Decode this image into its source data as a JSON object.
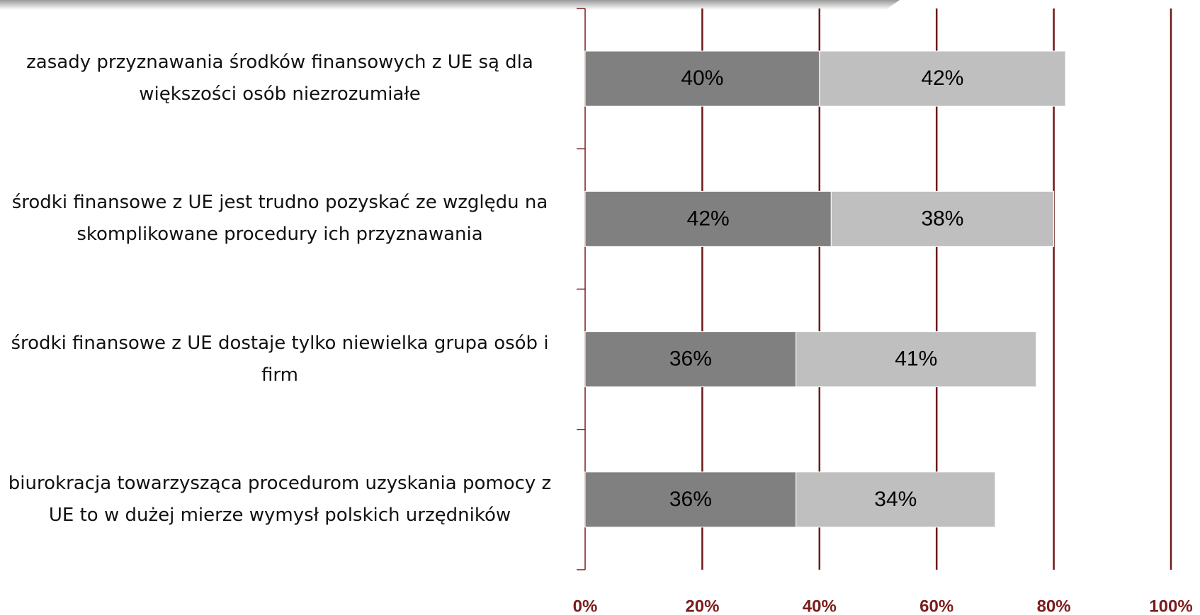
{
  "chart_data": {
    "type": "stacked-barh",
    "categories": [
      "zasady przyznawania środków finansowych z UE są dla większości osób niezrozumiałe",
      "środki finansowe z UE jest trudno pozyskać ze względu na skomplikowane procedury ich przyznawania",
      "środki finansowe z UE dostaje tylko niewielka grupa osób i firm",
      "biurokracja towarzysząca procedurom uzyskania pomocy z UE to w dużej mierze wymysł polskich urzędników"
    ],
    "series": [
      {
        "color": "#808080",
        "values": [
          40,
          42,
          36,
          36
        ],
        "value_labels": [
          "40%",
          "42%",
          "36%",
          "36%"
        ]
      },
      {
        "color": "#bfbfbf",
        "values": [
          42,
          38,
          41,
          34
        ],
        "value_labels": [
          "42%",
          "38%",
          "41%",
          "34%"
        ]
      }
    ],
    "xlim": [
      0,
      100
    ],
    "xticks": [
      {
        "value": 0,
        "label": "0%"
      },
      {
        "value": 20,
        "label": "20%"
      },
      {
        "value": 40,
        "label": "40%"
      },
      {
        "value": 60,
        "label": "60%"
      },
      {
        "value": 80,
        "label": "80%"
      },
      {
        "value": 100,
        "label": "100%"
      }
    ],
    "grid": true
  }
}
